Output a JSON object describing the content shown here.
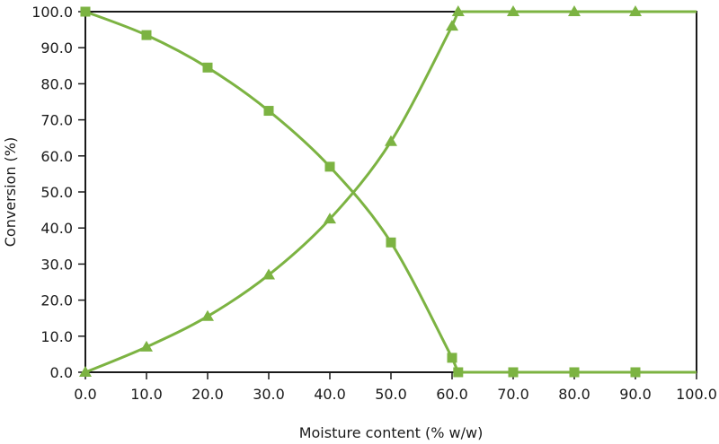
{
  "chart_data": {
    "type": "line",
    "title": "",
    "xlabel": "Moisture content (% w/w)",
    "ylabel": "Conversion (%)",
    "xlim": [
      0,
      100
    ],
    "ylim": [
      0,
      100
    ],
    "x_ticks": [
      "0.0",
      "10.0",
      "20.0",
      "30.0",
      "40.0",
      "50.0",
      "60.0",
      "70.0",
      "80.0",
      "90.0",
      "100.0"
    ],
    "y_ticks": [
      "0.0",
      "10.0",
      "20.0",
      "30.0",
      "40.0",
      "50.0",
      "60.0",
      "70.0",
      "80.0",
      "90.0",
      "100.0"
    ],
    "grid": false,
    "legend": null,
    "color": "#7cb342",
    "series": [
      {
        "name": "squares",
        "marker": "square",
        "x": [
          0,
          10,
          20,
          30,
          40,
          50,
          60,
          61,
          70,
          80,
          90,
          100
        ],
        "values": [
          100,
          93.5,
          84.5,
          72.5,
          57,
          36,
          4,
          0,
          0,
          0,
          0,
          0
        ],
        "marker_points": 11
      },
      {
        "name": "triangles",
        "marker": "triangle",
        "x": [
          0,
          10,
          20,
          30,
          40,
          50,
          60,
          61,
          70,
          80,
          90,
          100
        ],
        "values": [
          0,
          7,
          15.5,
          27,
          42.5,
          64,
          96,
          100,
          100,
          100,
          100,
          100
        ],
        "marker_points": 11
      }
    ]
  }
}
